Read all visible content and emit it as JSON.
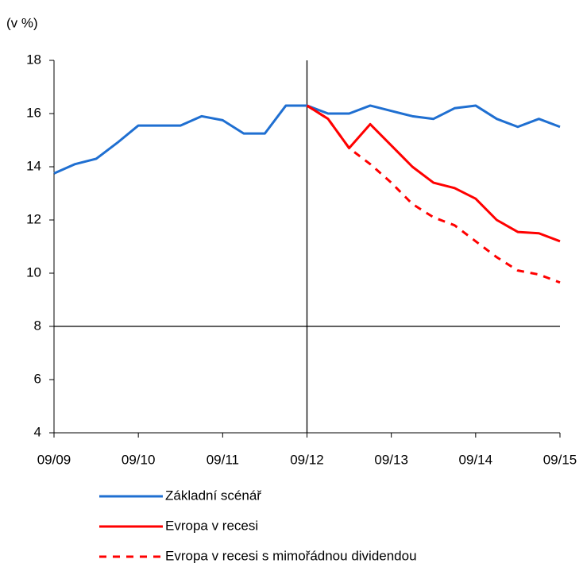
{
  "chart_data": {
    "type": "line",
    "y_label": "(v %)",
    "categories": [
      "09/09",
      null,
      null,
      null,
      "09/10",
      null,
      null,
      null,
      "09/11",
      null,
      null,
      null,
      "09/12",
      null,
      null,
      null,
      "09/13",
      null,
      null,
      null,
      "09/14",
      null,
      null,
      null,
      "09/15"
    ],
    "series": [
      {
        "name": "Základní scénář",
        "color": "#1f6fd1",
        "dashed": false,
        "values": [
          13.75,
          14.1,
          14.3,
          14.9,
          15.55,
          15.55,
          15.55,
          15.9,
          15.75,
          15.25,
          15.25,
          16.3,
          16.3,
          16.0,
          16.0,
          16.3,
          16.1,
          15.9,
          15.8,
          16.2,
          16.3,
          15.8,
          15.5,
          15.8,
          15.5
        ]
      },
      {
        "name": "Evropa v recesi",
        "color": "#ff0000",
        "dashed": false,
        "values": [
          null,
          null,
          null,
          null,
          null,
          null,
          null,
          null,
          null,
          null,
          null,
          null,
          16.3,
          15.8,
          14.7,
          15.6,
          14.8,
          14.0,
          13.4,
          13.2,
          12.8,
          12.0,
          11.55,
          11.5,
          11.2
        ]
      },
      {
        "name": "Evropa v recesi s mimořádnou dividendou",
        "color": "#ff0000",
        "dashed": true,
        "values": [
          null,
          null,
          null,
          null,
          null,
          null,
          null,
          null,
          null,
          null,
          null,
          null,
          16.3,
          15.8,
          14.7,
          14.1,
          13.4,
          12.6,
          12.1,
          11.8,
          11.2,
          10.6,
          10.1,
          9.95,
          9.65
        ]
      }
    ],
    "ylim": [
      4,
      18
    ],
    "yticks": [
      4,
      6,
      8,
      10,
      12,
      14,
      16,
      18
    ],
    "hline": 8,
    "vline_index": 12,
    "grid": false
  }
}
